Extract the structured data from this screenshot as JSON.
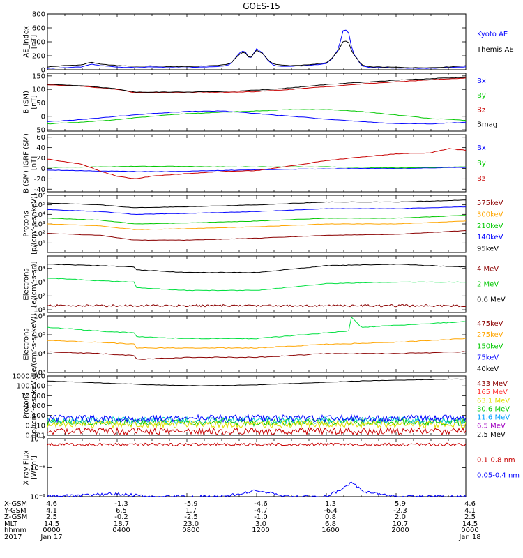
{
  "title": "GOES-15",
  "colors": {
    "black": "#000000",
    "blue": "#0000ff",
    "navy": "#0000c8",
    "green": "#00c800",
    "red": "#c80000",
    "dark_red": "#8b0000",
    "orange": "#ffa500",
    "green2": "#00e040",
    "cyan": "#00c8c8",
    "yellow": "#e0e000",
    "purple": "#a000c0"
  },
  "chart_data": [
    {
      "id": "ae",
      "type": "line",
      "ylabel": "AE_index\n[nT]",
      "yscale": "linear",
      "ylim": [
        0,
        800
      ],
      "yticks": [
        "0",
        "200",
        "400",
        "600",
        "800"
      ],
      "xlim": [
        0,
        24
      ],
      "series": [
        {
          "name": "Kyoto AE",
          "color": "#0000ff",
          "x": [
            0,
            1,
            2,
            2.5,
            3,
            4,
            5,
            6,
            7,
            8,
            9,
            10,
            10.5,
            11,
            11.3,
            11.6,
            12,
            12.3,
            12.7,
            13,
            13.5,
            14,
            15,
            16,
            16.3,
            16.7,
            17,
            17.3,
            17.5,
            17.8,
            18,
            18.5,
            19,
            20,
            21,
            22,
            23,
            24
          ],
          "y": [
            20,
            30,
            40,
            80,
            60,
            40,
            30,
            40,
            30,
            30,
            40,
            50,
            80,
            240,
            280,
            150,
            300,
            250,
            120,
            60,
            50,
            50,
            60,
            90,
            150,
            300,
            600,
            520,
            250,
            150,
            60,
            30,
            30,
            25,
            20,
            20,
            30,
            40
          ]
        },
        {
          "name": "Themis AE",
          "color": "#000000",
          "x": [
            0,
            1,
            2,
            2.5,
            3,
            4,
            5,
            6,
            7,
            8,
            9,
            10,
            10.5,
            11,
            11.3,
            11.6,
            12,
            12.3,
            12.7,
            13,
            13.5,
            14,
            15,
            16,
            16.3,
            16.7,
            17,
            17.3,
            17.5,
            17.8,
            18,
            18.5,
            19,
            20,
            21,
            22,
            23,
            24
          ],
          "y": [
            40,
            60,
            70,
            110,
            80,
            60,
            50,
            55,
            45,
            45,
            55,
            65,
            90,
            220,
            260,
            160,
            280,
            240,
            130,
            80,
            65,
            60,
            70,
            100,
            160,
            280,
            420,
            390,
            230,
            150,
            70,
            40,
            40,
            35,
            30,
            30,
            40,
            60
          ]
        }
      ]
    },
    {
      "id": "bsm",
      "type": "line",
      "ylabel": "B (SM)\n[nT]",
      "yscale": "linear",
      "ylim": [
        -55,
        160
      ],
      "yticks": [
        "-50",
        "0",
        "50",
        "100",
        "150"
      ],
      "xlim": [
        0,
        24
      ],
      "series": [
        {
          "name": "Bx",
          "color": "#0000ff",
          "x": [
            0,
            2,
            4,
            6,
            8,
            10,
            12,
            14,
            16,
            18,
            20,
            22,
            24
          ],
          "y": [
            -20,
            -12,
            0,
            10,
            18,
            20,
            10,
            0,
            -10,
            -20,
            -27,
            -28,
            -22
          ]
        },
        {
          "name": "By",
          "color": "#00c800",
          "x": [
            0,
            2,
            4,
            6,
            8,
            10,
            12,
            14,
            16,
            18,
            20,
            22,
            24
          ],
          "y": [
            -28,
            -22,
            -12,
            0,
            10,
            15,
            20,
            25,
            25,
            18,
            5,
            -8,
            -15
          ]
        },
        {
          "name": "Bz",
          "color": "#c80000",
          "x": [
            0,
            2,
            4,
            5,
            6,
            8,
            10,
            12,
            14,
            16,
            18,
            20,
            22,
            24
          ],
          "y": [
            117,
            112,
            100,
            88,
            88,
            87,
            88,
            92,
            100,
            110,
            120,
            128,
            136,
            142
          ]
        },
        {
          "name": "Bmag",
          "color": "#000000",
          "x": [
            0,
            2,
            4,
            5,
            6,
            8,
            10,
            12,
            14,
            16,
            18,
            20,
            22,
            24
          ],
          "y": [
            119,
            114,
            102,
            90,
            90,
            90,
            92,
            97,
            106,
            118,
            126,
            134,
            140,
            145
          ]
        }
      ]
    },
    {
      "id": "bigrf",
      "type": "line",
      "ylabel": "B (SM)-IGRF (SM)\n[nT]",
      "yscale": "linear",
      "ylim": [
        -45,
        65
      ],
      "yticks": [
        "-40",
        "-20",
        "0",
        "20",
        "40",
        "60"
      ],
      "xlim": [
        0,
        24
      ],
      "series": [
        {
          "name": "Bx",
          "color": "#0000ff",
          "x": [
            0,
            3,
            5,
            7,
            10,
            13,
            16,
            18,
            20,
            22,
            24
          ],
          "y": [
            -3,
            -5,
            -6,
            -6,
            -4,
            -2,
            -1,
            0,
            0,
            1,
            2
          ]
        },
        {
          "name": "By",
          "color": "#00c800",
          "x": [
            0,
            3,
            5,
            7,
            10,
            13,
            16,
            18,
            20,
            22,
            24
          ],
          "y": [
            2,
            3,
            4,
            4,
            3,
            3,
            3,
            2,
            1,
            2,
            3
          ]
        },
        {
          "name": "Bz",
          "color": "#c80000",
          "x": [
            0,
            2,
            3,
            4,
            5,
            6,
            8,
            10,
            12,
            14,
            16,
            18,
            20,
            22,
            23,
            24
          ],
          "y": [
            18,
            8,
            -5,
            -15,
            -20,
            -15,
            -10,
            -6,
            -4,
            5,
            15,
            22,
            28,
            30,
            38,
            35
          ]
        }
      ]
    },
    {
      "id": "protons_mage",
      "type": "line",
      "ylabel": "Protons\n[p/(cm²-s-sr-keV)]",
      "yscale": "log",
      "ylim": [
        0,
        6
      ],
      "yticks": [
        "10¹",
        "10²",
        "10³",
        "10⁴",
        "10⁵",
        "10⁶"
      ],
      "xlim": [
        0,
        24
      ],
      "series": [
        {
          "name": "575keV",
          "color": "#000000",
          "x": [
            0,
            3,
            5,
            8,
            12,
            16,
            20,
            24
          ],
          "y": [
            5.2,
            5.0,
            4.7,
            4.8,
            5.0,
            5.3,
            5.3,
            5.5
          ]
        },
        {
          "name": "300keV",
          "color": "#0000ff",
          "x": [
            0,
            3,
            5,
            8,
            12,
            16,
            20,
            24
          ],
          "y": [
            4.5,
            4.3,
            4.0,
            4.1,
            4.3,
            4.6,
            4.6,
            4.8
          ]
        },
        {
          "name": "210keV",
          "color": "#00c800",
          "x": [
            0,
            3,
            5,
            8,
            12,
            16,
            20,
            24
          ],
          "y": [
            3.6,
            3.4,
            3.0,
            3.1,
            3.3,
            3.6,
            3.6,
            3.9
          ]
        },
        {
          "name": "140keV",
          "color": "#ffa500",
          "x": [
            0,
            3,
            5,
            8,
            12,
            16,
            20,
            24
          ],
          "y": [
            3.0,
            2.8,
            2.4,
            2.5,
            2.7,
            3.0,
            3.0,
            3.3
          ]
        },
        {
          "name": "95keV",
          "color": "#8b0000",
          "x": [
            0,
            3,
            5,
            8,
            12,
            16,
            20,
            24
          ],
          "y": [
            2.0,
            1.8,
            1.3,
            1.3,
            1.5,
            1.8,
            1.9,
            2.3
          ]
        }
      ],
      "legend": [
        {
          "label": "575keV",
          "color": "#8b0000"
        },
        {
          "label": "300keV",
          "color": "#ffa500"
        },
        {
          "label": "210keV",
          "color": "#00c800"
        },
        {
          "label": "140keV",
          "color": "#0000ff"
        },
        {
          "label": "95keV",
          "color": "#000000"
        }
      ]
    },
    {
      "id": "electrons_epead",
      "type": "line",
      "ylabel": "Electrons\n[e/(cm²-s-sr)]",
      "yscale": "log",
      "ylim": [
        0.8,
        4.9
      ],
      "yticks": [
        "10¹",
        "10²",
        "10³",
        "10⁴"
      ],
      "xlim": [
        0,
        24
      ],
      "series": [
        {
          "name": "4 MeV",
          "color": "#000000",
          "x": [
            0,
            3,
            5,
            5.1,
            8,
            12,
            16,
            20,
            24
          ],
          "y": [
            4.3,
            4.2,
            4.1,
            3.9,
            3.7,
            3.7,
            4.2,
            4.3,
            4.1
          ]
        },
        {
          "name": "2 MeV",
          "color": "#00e040",
          "x": [
            0,
            3,
            5,
            5.1,
            8,
            12,
            16,
            20,
            24
          ],
          "y": [
            3.3,
            3.1,
            3.0,
            2.6,
            2.4,
            2.4,
            2.9,
            3.0,
            3.0
          ]
        },
        {
          "name": "0.6 MeV",
          "color": "#8b0000",
          "x": [
            0,
            24
          ],
          "y": [
            1.3,
            1.3
          ]
        }
      ],
      "legend": [
        {
          "label": "4 MeV",
          "color": "#8b0000"
        },
        {
          "label": "2 MeV",
          "color": "#00c800"
        },
        {
          "label": "0.6 MeV",
          "color": "#000000"
        }
      ]
    },
    {
      "id": "electrons_mage",
      "type": "line",
      "ylabel": "Electrons\n[e/(cm²-s-sr-keV)]",
      "yscale": "log",
      "ylim": [
        3.0,
        6.0
      ],
      "yticks": [
        "10³",
        "10⁴",
        "10⁵",
        "10⁶"
      ],
      "xlim": [
        0,
        24
      ],
      "series": [
        {
          "name": "475keV",
          "color": "#00e040",
          "x": [
            0,
            3,
            5,
            5.1,
            8,
            12,
            16,
            17.3,
            17.35,
            18,
            20,
            24
          ],
          "y": [
            5.4,
            5.2,
            5.1,
            4.9,
            4.8,
            4.8,
            5.1,
            5.2,
            6.0,
            5.4,
            5.5,
            5.7
          ]
        },
        {
          "name": "275keV",
          "color": "#ffa500",
          "x": [
            0,
            3,
            5,
            5.1,
            8,
            12,
            16,
            20,
            24
          ],
          "y": [
            4.7,
            4.6,
            4.5,
            4.3,
            4.3,
            4.3,
            4.5,
            4.6,
            4.8
          ]
        },
        {
          "name": "150keV",
          "color": "#8b0000",
          "x": [
            0,
            3,
            5,
            5.1,
            8,
            12,
            16,
            20,
            24
          ],
          "y": [
            4.1,
            4.0,
            3.9,
            3.7,
            3.8,
            3.8,
            4.0,
            4.0,
            4.1
          ]
        }
      ],
      "legend": [
        {
          "label": "475keV",
          "color": "#8b0000"
        },
        {
          "label": "275keV",
          "color": "#ffa500"
        },
        {
          "label": "150keV",
          "color": "#00c800"
        },
        {
          "label": "75keV",
          "color": "#0000ff"
        },
        {
          "label": "40keV",
          "color": "#000000"
        }
      ]
    },
    {
      "id": "protons_epead",
      "type": "line",
      "ylabel": "Protons\n[p/(cm²-s-sr-keV)]",
      "yscale": "log",
      "ylim": [
        -3,
        3
      ],
      "yticks": [
        "0.001",
        "0.010",
        "0.100",
        "1.000",
        "10.000",
        "100.000",
        "1000.000"
      ],
      "xlim": [
        0,
        24
      ],
      "series": [
        {
          "name": "2.5 MeV",
          "color": "#000000",
          "x": [
            0,
            3,
            6,
            9,
            12,
            15,
            18,
            21,
            24
          ],
          "y": [
            2.5,
            2.3,
            2.1,
            2.0,
            2.1,
            2.3,
            2.5,
            2.6,
            2.7
          ]
        },
        {
          "name": "433 MeV",
          "color": "#c80000",
          "x": [
            0,
            24
          ],
          "y": [
            -2.6,
            -2.6
          ]
        },
        {
          "name": "30.6 MeV",
          "color": "#00c800",
          "x": [
            0,
            24
          ],
          "y": [
            -1.7,
            -1.7
          ]
        },
        {
          "name": "11.6 MeV",
          "color": "#00c8c8",
          "x": [
            0,
            24
          ],
          "y": [
            -1.5,
            -1.5
          ]
        },
        {
          "name": "63.1 MeV",
          "color": "#e0e000",
          "x": [
            0,
            24
          ],
          "y": [
            -1.9,
            -1.9
          ]
        },
        {
          "name": "6.5 MeV",
          "color": "#0000ff",
          "x": [
            0,
            24
          ],
          "y": [
            -1.3,
            -1.3
          ]
        }
      ],
      "legend": [
        {
          "label": "433 MeV",
          "color": "#8b0000"
        },
        {
          "label": "165 MeV",
          "color": "#ff3030"
        },
        {
          "label": "63.1 MeV",
          "color": "#e0e000"
        },
        {
          "label": "30.6 MeV",
          "color": "#00c800"
        },
        {
          "label": "11.6 MeV",
          "color": "#00a0ff"
        },
        {
          "label": "6.5 MeV",
          "color": "#a000c0"
        },
        {
          "label": "2.5 MeV",
          "color": "#000000"
        }
      ]
    },
    {
      "id": "xray",
      "type": "line",
      "ylabel": "X-ray Flux\n[W/m²]",
      "yscale": "log",
      "ylim": [
        -9,
        -7
      ],
      "yticks": [
        "10⁻⁹",
        "10⁻⁸",
        "10⁻⁷"
      ],
      "xlim": [
        0,
        24
      ],
      "series": [
        {
          "name": "0.1-0.8 nm",
          "color": "#c80000",
          "x": [
            0,
            24
          ],
          "y": [
            -7.2,
            -7.2
          ]
        },
        {
          "name": "0.05-0.4 nm",
          "color": "#0000ff",
          "x": [
            0,
            4,
            6,
            10,
            11,
            12,
            14,
            16,
            17,
            17.5,
            18,
            20,
            24
          ],
          "y": [
            -9.0,
            -8.9,
            -9.0,
            -9.0,
            -8.9,
            -8.8,
            -9.0,
            -9.0,
            -8.7,
            -8.5,
            -8.8,
            -9.0,
            -9.0
          ]
        }
      ],
      "legend": [
        {
          "label": "0.1-0.8 nm",
          "color": "#c80000"
        },
        {
          "label": "0.05-0.4 nm",
          "color": "#0000ff"
        }
      ]
    }
  ],
  "footer": {
    "rows": [
      {
        "label": "X-GSM",
        "values": [
          "4.6",
          "-1.3",
          "-5.9",
          "-4.6",
          "1.3",
          "5.9",
          "4.6"
        ]
      },
      {
        "label": "Y-GSM",
        "values": [
          "4.1",
          "6.5",
          "1.7",
          "-4.7",
          "-6.4",
          "-2.3",
          "4.1"
        ]
      },
      {
        "label": "Z-GSM",
        "values": [
          "2.5",
          "-0.2",
          "-2.5",
          "-1.0",
          "0.8",
          "2.0",
          "2.5"
        ]
      },
      {
        "label": "MLT",
        "values": [
          "14.5",
          "18.7",
          "23.0",
          "3.0",
          "6.8",
          "10.7",
          "14.5"
        ]
      },
      {
        "label": "hhmm",
        "values": [
          "0000",
          "0400",
          "0800",
          "1200",
          "1600",
          "2000",
          "0000"
        ]
      },
      {
        "label": "2017",
        "values": [
          "Jan 17",
          "",
          "",
          "",
          "",
          "",
          "Jan 18"
        ]
      }
    ]
  }
}
